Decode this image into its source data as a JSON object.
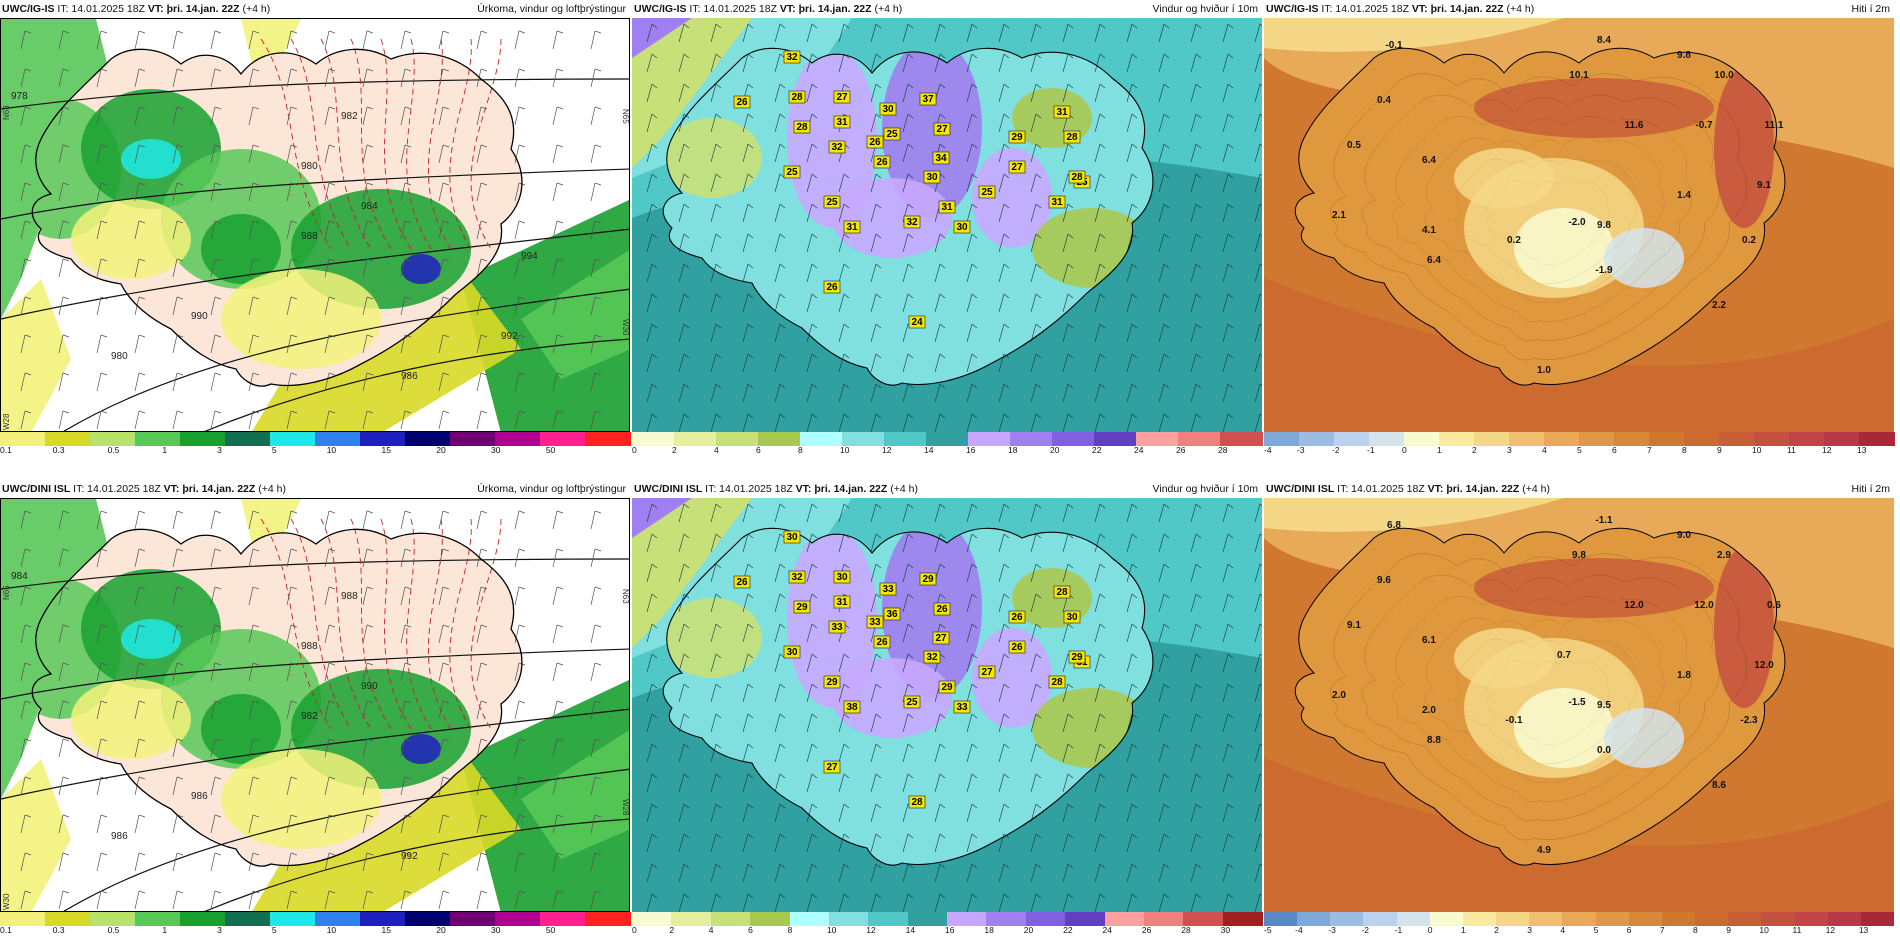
{
  "panels": [
    {
      "id": "p1",
      "model": "UWC/IG-IS",
      "it_label": "IT: 14.01.2025 18Z",
      "vt_label": "VT: þri. 14.jan. 22Z",
      "lead": "(+4 h)",
      "title": "Úrkoma, vindur og loftþrýstingur",
      "type": "precip",
      "scale_ticks": [
        "0.1",
        "0.3",
        "0.5",
        "1",
        "3",
        "5",
        "10",
        "15",
        "20",
        "30",
        "50"
      ],
      "scale_colors": [
        "#f2f27a",
        "#d8d826",
        "#b8e26a",
        "#58c858",
        "#18a030",
        "#107050",
        "#20e8e8",
        "#3080f0",
        "#2020c0",
        "#000070",
        "#700070",
        "#b00090",
        "#ff2090",
        "#ff2020"
      ],
      "isobars": [
        "978",
        "980",
        "980",
        "982",
        "984",
        "986",
        "988",
        "990",
        "992",
        "994"
      ],
      "edge_labels": [
        "N63",
        "W28",
        "N65",
        "W30"
      ]
    },
    {
      "id": "p2",
      "model": "UWC/IG-IS",
      "it_label": "IT: 14.01.2025 18Z",
      "vt_label": "VT: þri. 14.jan. 22Z",
      "lead": "(+4 h)",
      "title": "Vindur og hviður í 10m",
      "type": "wind",
      "scale_ticks": [
        "0",
        "2",
        "4",
        "6",
        "8",
        "10",
        "12",
        "14",
        "16",
        "18",
        "20",
        "22",
        "24",
        "26",
        "28"
      ],
      "scale_colors": [
        "#fafad2",
        "#e4f0a0",
        "#c8e078",
        "#a8c850",
        "#b0ffff",
        "#80e0e0",
        "#50c8c8",
        "#30a0a0",
        "#c8a8ff",
        "#a080f0",
        "#8060e0",
        "#6040c0",
        "#ffa0a0",
        "#f08080",
        "#d05050"
      ],
      "gusts": [
        "32",
        "28",
        "26",
        "28",
        "32",
        "25",
        "27",
        "30",
        "25",
        "31",
        "26",
        "25",
        "31",
        "30",
        "37",
        "27",
        "34",
        "26",
        "31",
        "32",
        "30",
        "25",
        "27",
        "29",
        "31",
        "28",
        "25",
        "31",
        "28",
        "24",
        "26"
      ]
    },
    {
      "id": "p3",
      "model": "UWC/IG-IS",
      "it_label": "IT: 14.01.2025 18Z",
      "vt_label": "VT: þri. 14.jan. 22Z",
      "lead": "(+4 h)",
      "title": "Hiti í 2m",
      "type": "temp",
      "scale_ticks": [
        "-4",
        "-3",
        "-2",
        "-1",
        "0",
        "1",
        "2",
        "3",
        "4",
        "5",
        "6",
        "7",
        "8",
        "9",
        "10",
        "11",
        "12",
        "13"
      ],
      "scale_colors": [
        "#7ea8d8",
        "#9cbce4",
        "#bad2ee",
        "#d4e4ec",
        "#fafad0",
        "#f8eaa0",
        "#f4d888",
        "#eec070",
        "#e8aa58",
        "#e09848",
        "#d88838",
        "#d07830",
        "#cc6a30",
        "#c85e38",
        "#c45040",
        "#c04448",
        "#b83848",
        "#a82838"
      ],
      "temps": [
        "-0.1",
        "8.4",
        "9.8",
        "0.4",
        "10.1",
        "10.0",
        "0.5",
        "11.6",
        "-0.7",
        "11.1",
        "9.8",
        "6.4",
        "9.1",
        "1.4",
        "2.1",
        "4.1",
        "0.2",
        "-2.0",
        "0.2",
        "-1.9",
        "6.4",
        "2.2",
        "1.0"
      ]
    },
    {
      "id": "p4",
      "model": "UWC/DINI ISL",
      "it_label": "IT: 14.01.2025 18Z",
      "vt_label": "VT: þri. 14.jan. 22Z",
      "lead": "(+4 h)",
      "title": "Úrkoma, vindur og loftþrýstingur",
      "type": "precip",
      "scale_ticks": [
        "0.1",
        "0.3",
        "0.5",
        "1",
        "3",
        "5",
        "10",
        "15",
        "20",
        "30",
        "50"
      ],
      "scale_colors": [
        "#f2f27a",
        "#d8d826",
        "#b8e26a",
        "#58c858",
        "#18a030",
        "#107050",
        "#20e8e8",
        "#3080f0",
        "#2020c0",
        "#000070",
        "#700070",
        "#b00090",
        "#ff2090",
        "#ff2020"
      ],
      "isobars": [
        "984",
        "986",
        "988",
        "988",
        "990",
        "992",
        "982",
        "986"
      ],
      "edge_labels": [
        "N65",
        "W30",
        "N63",
        "W28"
      ]
    },
    {
      "id": "p5",
      "model": "UWC/DINI ISL",
      "it_label": "IT: 14.01.2025 18Z",
      "vt_label": "VT: þri. 14.jan. 22Z",
      "lead": "(+4 h)",
      "title": "Vindur og hviður í 10m",
      "type": "wind",
      "scale_ticks": [
        "0",
        "2",
        "4",
        "6",
        "8",
        "10",
        "12",
        "14",
        "16",
        "18",
        "20",
        "22",
        "24",
        "26",
        "28",
        "30"
      ],
      "scale_colors": [
        "#fafad2",
        "#e4f0a0",
        "#c8e078",
        "#a8c850",
        "#b0ffff",
        "#80e0e0",
        "#50c8c8",
        "#30a0a0",
        "#c8a8ff",
        "#a080f0",
        "#8060e0",
        "#6040c0",
        "#ffa0a0",
        "#f08080",
        "#d05050",
        "#a02020"
      ],
      "gusts": [
        "30",
        "32",
        "26",
        "29",
        "33",
        "30",
        "30",
        "33",
        "29",
        "38",
        "33",
        "36",
        "31",
        "32",
        "29",
        "26",
        "27",
        "26",
        "29",
        "25",
        "33",
        "27",
        "26",
        "26",
        "28",
        "30",
        "31",
        "28",
        "29",
        "28",
        "27"
      ]
    },
    {
      "id": "p6",
      "model": "UWC/DINI ISL",
      "it_label": "IT: 14.01.2025 18Z",
      "vt_label": "VT: þri. 14.jan. 22Z",
      "lead": "(+4 h)",
      "title": "Hiti í 2m",
      "type": "temp",
      "scale_ticks": [
        "-5",
        "-4",
        "-3",
        "-2",
        "-1",
        "0",
        "1",
        "2",
        "3",
        "4",
        "5",
        "6",
        "7",
        "8",
        "9",
        "10",
        "11",
        "12",
        "13"
      ],
      "scale_colors": [
        "#5a88c4",
        "#7ea8d8",
        "#9cbce4",
        "#bad2ee",
        "#d4e4ec",
        "#fafad0",
        "#f8eaa0",
        "#f4d888",
        "#eec070",
        "#e8aa58",
        "#e09848",
        "#d88838",
        "#d07830",
        "#cc6a30",
        "#c85e38",
        "#c45040",
        "#c04448",
        "#b83848",
        "#a82838"
      ],
      "temps": [
        "6.8",
        "-1.1",
        "9.0",
        "9.6",
        "9.8",
        "2.9",
        "9.1",
        "12.0",
        "12.0",
        "0.6",
        "9.5",
        "6.1",
        "12.0",
        "1.8",
        "2.0",
        "2.0",
        "-0.1",
        "-1.5",
        "-2.3",
        "0.0",
        "8.8",
        "8.6",
        "4.9",
        "0.7"
      ]
    }
  ]
}
